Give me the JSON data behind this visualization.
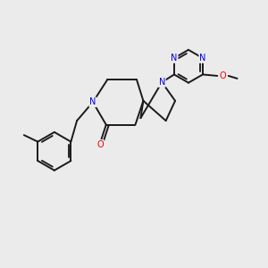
{
  "background_color": "#ebebeb",
  "bond_color": "#1a1a1a",
  "N_color": "#0000ee",
  "O_color": "#ee0000",
  "line_width": 1.4,
  "figsize": [
    3.0,
    3.0
  ],
  "dpi": 100,
  "xlim": [
    0,
    10
  ],
  "ylim": [
    0,
    10
  ],
  "font_size": 7.0
}
